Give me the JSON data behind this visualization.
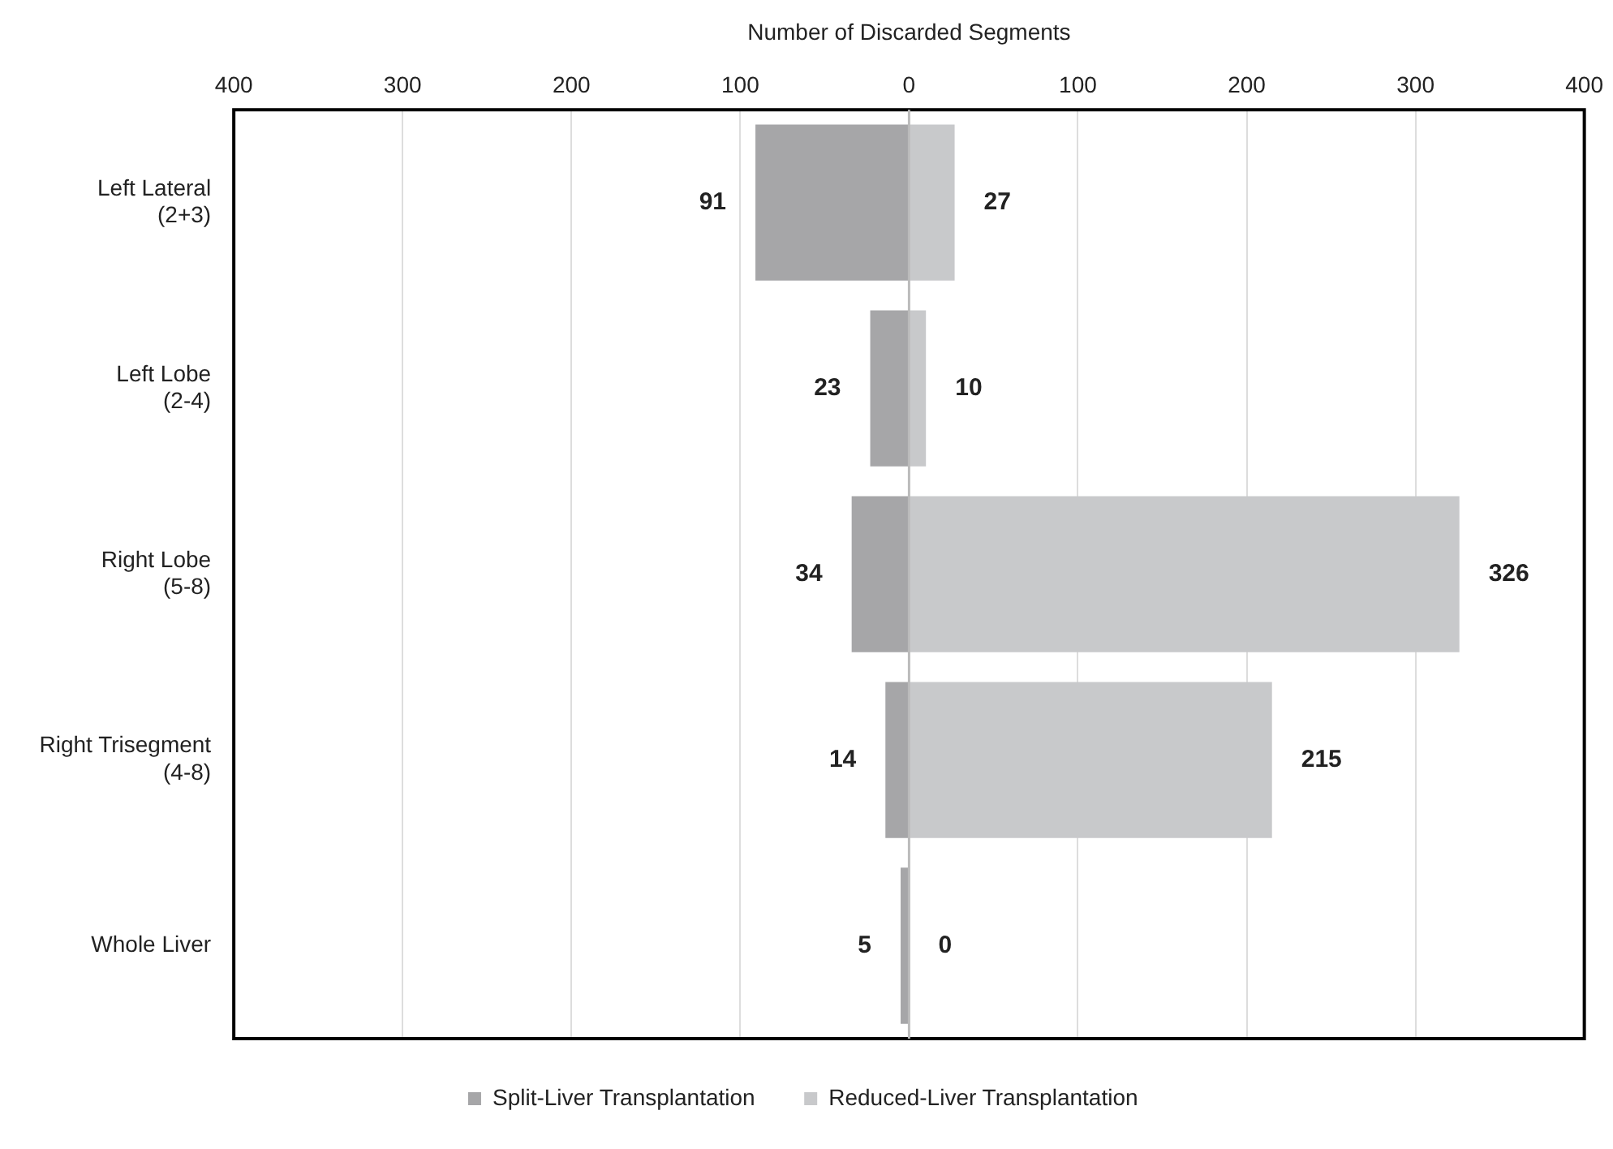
{
  "chart_data": {
    "type": "bar",
    "orientation": "horizontal",
    "xlabel": "Number of Discarded Segments",
    "categories": [
      "Left Lateral\n(2+3)",
      "Left Lobe\n(2-4)",
      "Right Lobe\n(5-8)",
      "Right Trisegment\n(4-8)",
      "Whole Liver"
    ],
    "series": [
      {
        "name": "Split-Liver Transplantation",
        "color": "#a6a6a8",
        "base": [
          -91,
          -23,
          -34,
          -14,
          -5
        ],
        "values": [
          91,
          23,
          34,
          14,
          5
        ],
        "value_labels": [
          "91",
          "23",
          "34",
          "14",
          "5"
        ]
      },
      {
        "name": "Reduced-Liver Transplantation",
        "color": "#c8c9cb",
        "values": [
          27,
          10,
          326,
          215,
          0
        ],
        "value_labels": [
          "27",
          "10",
          "326",
          "215",
          "0"
        ]
      }
    ],
    "xlim": [
      -400,
      400
    ],
    "xticks": [
      {
        "value": -400,
        "label": "400"
      },
      {
        "value": -300,
        "label": "300"
      },
      {
        "value": -200,
        "label": "200"
      },
      {
        "value": -100,
        "label": "100"
      },
      0,
      100,
      200,
      300,
      400
    ],
    "grid": "x",
    "legend": "bottom"
  }
}
